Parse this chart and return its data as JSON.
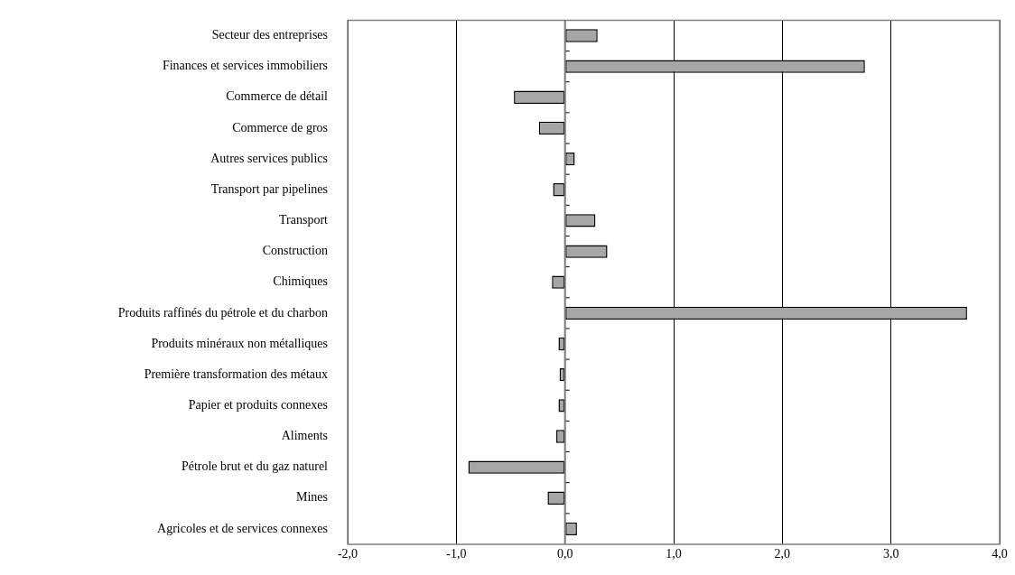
{
  "chart_data": {
    "type": "bar",
    "orientation": "horizontal",
    "categories": [
      "Secteur des entreprises",
      "Finances et services immobiliers",
      "Commerce de détail",
      "Commerce de gros",
      "Autres services publics",
      "Transport par pipelines",
      "Transport",
      "Construction",
      "Chimiques",
      "Produits raffinés du pétrole et du charbon",
      "Produits minéraux non métalliques",
      "Première transformation des métaux",
      "Papier et produits connexes",
      "Aliments",
      "Pétrole brut et du gaz naturel",
      "Mines",
      "Agricoles et de services connexes"
    ],
    "values": [
      0.3,
      2.76,
      -0.47,
      -0.24,
      0.09,
      -0.11,
      0.28,
      0.39,
      -0.12,
      3.7,
      -0.06,
      -0.05,
      -0.06,
      -0.08,
      -0.89,
      -0.16,
      0.11
    ],
    "color": "#a6a6a6",
    "xlim": [
      -2,
      4
    ],
    "xticks": [
      {
        "value": -2,
        "label": "-2,0"
      },
      {
        "value": -1,
        "label": "-1,0"
      },
      {
        "value": 0,
        "label": "0,0"
      },
      {
        "value": 1,
        "label": "1,0"
      },
      {
        "value": 2,
        "label": "2,0"
      },
      {
        "value": 3,
        "label": "3,0"
      },
      {
        "value": 4,
        "label": "4,0"
      }
    ],
    "grid": "x",
    "legend": false
  }
}
